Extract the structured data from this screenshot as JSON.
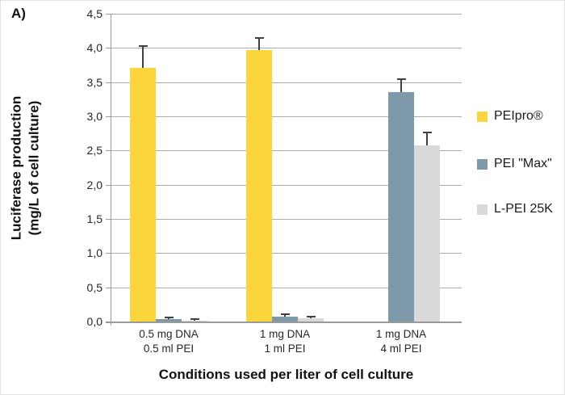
{
  "figure": {
    "panel_label": "A)"
  },
  "chart_data": {
    "type": "bar",
    "title": "",
    "xlabel": "Conditions used per liter of cell culture",
    "ylabel_lines": [
      "Luciferase production",
      "(mg/L of cell culture)"
    ],
    "categories": [
      [
        "0.5 mg DNA",
        "0.5 ml PEI"
      ],
      [
        "1 mg DNA",
        "1 ml PEI"
      ],
      [
        "1 mg DNA",
        "4 ml PEI"
      ]
    ],
    "series": [
      {
        "name": "PEIpro®",
        "color": "#FCD53C",
        "values": [
          3.71,
          3.97,
          0
        ],
        "errors": [
          0.33,
          0.19,
          0
        ]
      },
      {
        "name": "PEI \"Max\"",
        "color": "#7D99AA",
        "values": [
          0.03,
          0.07,
          3.35
        ],
        "errors": [
          0.04,
          0.05,
          0.2
        ]
      },
      {
        "name": "L-PEI 25K",
        "color": "#D9D9D9",
        "values": [
          0.01,
          0.05,
          2.57
        ],
        "errors": [
          0.04,
          0.03,
          0.2
        ]
      }
    ],
    "ylim": [
      0,
      4.5
    ],
    "ytick_step": 0.5,
    "ytick_labels": [
      "0,0",
      "0,5",
      "1,0",
      "1,5",
      "2,0",
      "2,5",
      "3,0",
      "3,5",
      "4,0",
      "4,5"
    ],
    "decimal_separator": ",",
    "grid": "horizontal",
    "legend_position": "right",
    "style": {
      "grid_color": "#ABABAB",
      "axis_color": "#9A9A9A",
      "error_bar_color": "#404040",
      "text_color": "#262626"
    }
  }
}
